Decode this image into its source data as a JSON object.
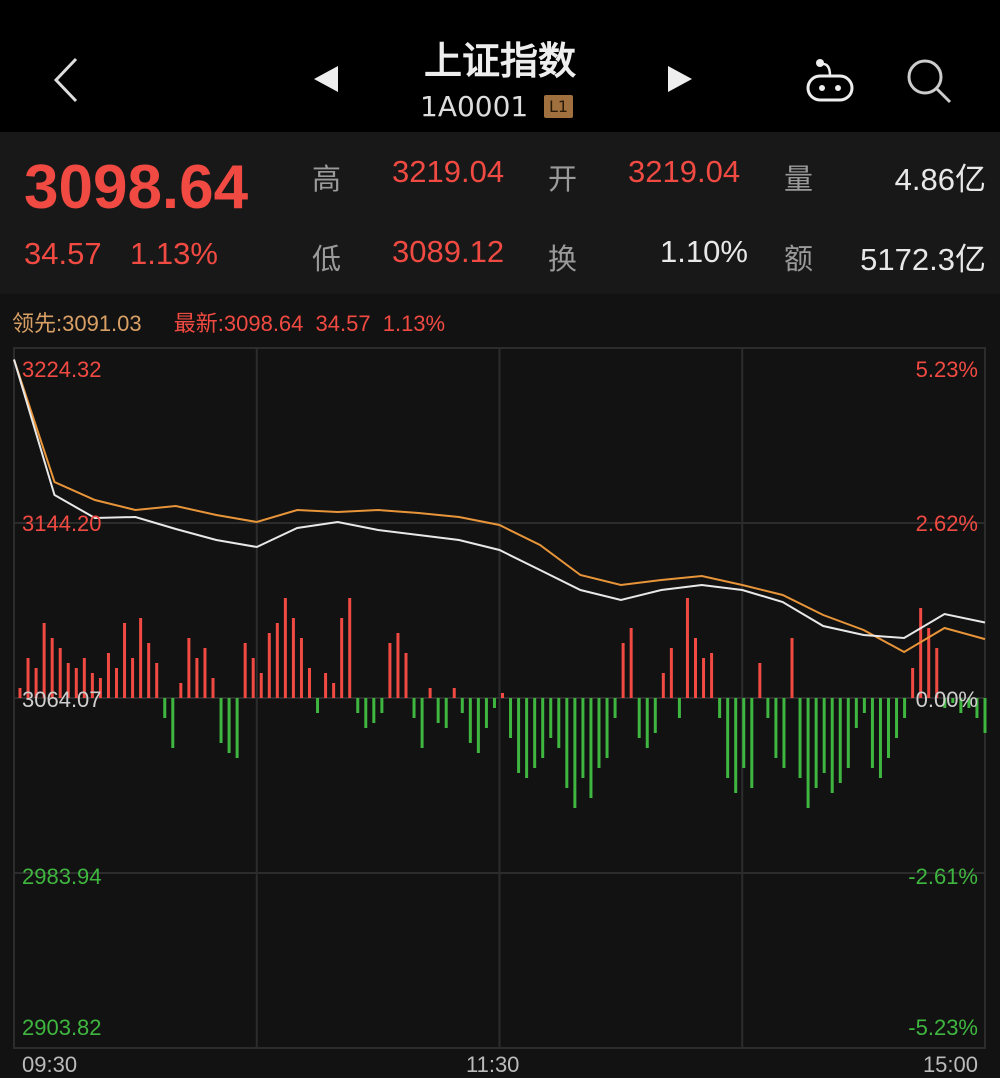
{
  "header": {
    "back_icon": "chevron-left-icon",
    "prev_icon": "triangle-left-icon",
    "next_icon": "triangle-right-icon",
    "title": "上证指数",
    "code": "1A0001",
    "level_badge": "L1",
    "robot_icon": "robot-assistant-icon",
    "search_icon": "search-icon"
  },
  "quote": {
    "price": "3098.64",
    "change": "34.57",
    "change_pct": "1.13%",
    "high_label": "高",
    "high": "3219.04",
    "open_label": "开",
    "open": "3219.04",
    "volume_label": "量",
    "volume": "4.86亿",
    "low_label": "低",
    "low": "3089.12",
    "turnover_label": "换",
    "turnover": "1.10%",
    "amount_label": "额",
    "amount": "5172.3亿"
  },
  "legend": {
    "lead": "领先:3091.03",
    "latest": "最新:3098.64",
    "latest_change": "34.57",
    "latest_pct": "1.13%"
  },
  "colors": {
    "up": "#f04a42",
    "down": "#3fb63f",
    "price_line": "#e8e8e8",
    "lead_line": "#e8953a",
    "lead_text": "#d9a066"
  },
  "chart_data": {
    "type": "line",
    "ylim": [
      2903.82,
      3224.32
    ],
    "prev_close": 3064.07,
    "y_ticks_left": [
      "3224.32",
      "3144.20",
      "3064.07",
      "2983.94",
      "2903.82"
    ],
    "y_ticks_right": [
      "5.23%",
      "2.62%",
      "0.00%",
      "-2.61%",
      "-5.23%"
    ],
    "x_ticks": [
      "09:30",
      "11:30",
      "15:00"
    ],
    "x": [
      "09:30",
      "09:40",
      "09:50",
      "10:00",
      "10:10",
      "10:20",
      "10:30",
      "10:40",
      "10:50",
      "11:00",
      "11:10",
      "11:20",
      "11:30",
      "13:10",
      "13:20",
      "13:30",
      "13:40",
      "13:50",
      "14:00",
      "14:10",
      "14:20",
      "14:30",
      "14:40",
      "14:50",
      "15:00"
    ],
    "series": [
      {
        "values": [
          3219.04,
          3157.02,
          3146.49,
          3146.95,
          3141.46,
          3136.42,
          3133.21,
          3141.91,
          3144.66,
          3141.0,
          3138.71,
          3136.42,
          3131.84,
          3122.68,
          3113.52,
          3108.94,
          3113.52,
          3115.81,
          3113.52,
          3108.03,
          3097.04,
          3092.92,
          3091.54,
          3102.53,
          3098.64
        ]
      },
      {
        "values": [
          3219.04,
          3162.98,
          3154.73,
          3150.16,
          3151.99,
          3147.87,
          3144.66,
          3150.16,
          3149.24,
          3150.16,
          3148.78,
          3146.95,
          3143.29,
          3134.13,
          3120.39,
          3115.81,
          3118.1,
          3119.93,
          3115.81,
          3111.23,
          3102.08,
          3095.21,
          3085.13,
          3096.12,
          3091.03
        ]
      }
    ],
    "volume_bars": [
      10,
      40,
      30,
      75,
      60,
      50,
      35,
      30,
      40,
      25,
      20,
      45,
      30,
      75,
      40,
      80,
      55,
      35,
      -20,
      -50,
      15,
      60,
      40,
      50,
      20,
      -45,
      -55,
      -60,
      55,
      40,
      25,
      65,
      75,
      100,
      80,
      60,
      30,
      -15,
      25,
      15,
      80,
      100,
      -15,
      -30,
      -25,
      -15,
      55,
      65,
      45,
      -20,
      -50,
      10,
      -25,
      -30,
      10,
      -15,
      -45,
      -55,
      -30,
      -10,
      5,
      -40,
      -75,
      -80,
      -70,
      -60,
      -40,
      -50,
      -90,
      -110,
      -80,
      -100,
      -70,
      -60,
      -20,
      55,
      70,
      -40,
      -50,
      -35,
      25,
      50,
      -20,
      100,
      60,
      40,
      45,
      -20,
      -80,
      -95,
      -70,
      -90,
      35,
      -20,
      -60,
      -70,
      60,
      -80,
      -110,
      -90,
      -75,
      -95,
      -85,
      -70,
      -30,
      -15,
      -70,
      -80,
      -60,
      -40,
      -20,
      30,
      90,
      70,
      50,
      -10,
      -5,
      -15,
      -10,
      -20,
      -35
    ]
  }
}
